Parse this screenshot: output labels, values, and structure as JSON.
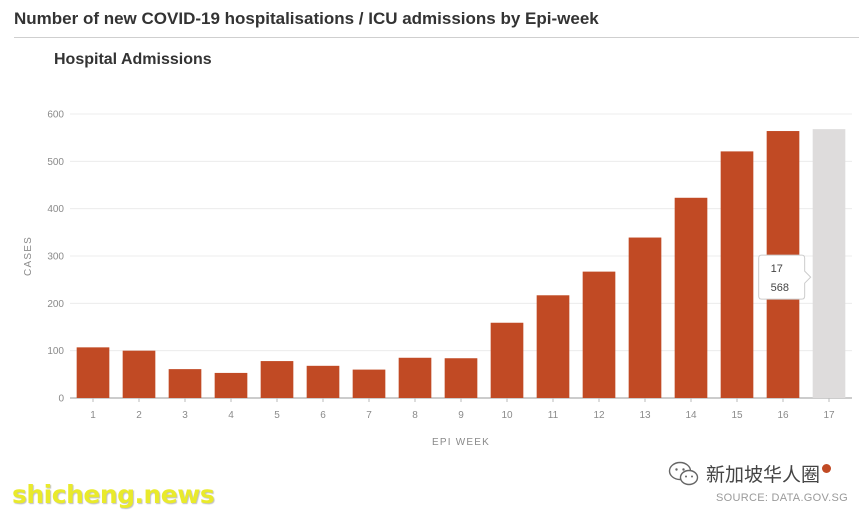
{
  "header": {
    "title": "Number of new COVID-19 hospitalisations / ICU admissions by Epi-week"
  },
  "chart_data": {
    "type": "bar",
    "title": "Hospital Admissions",
    "xlabel": "EPI WEEK",
    "ylabel": "CASES",
    "ylim": [
      0,
      600
    ],
    "yticks": [
      0,
      100,
      200,
      300,
      400,
      500,
      600
    ],
    "grid": true,
    "categories": [
      "1",
      "2",
      "3",
      "4",
      "5",
      "6",
      "7",
      "8",
      "9",
      "10",
      "11",
      "12",
      "13",
      "14",
      "15",
      "16",
      "17"
    ],
    "values": [
      107,
      100,
      61,
      53,
      78,
      68,
      60,
      85,
      84,
      159,
      217,
      267,
      339,
      423,
      521,
      564,
      568
    ],
    "bar_color": "#c14a24",
    "highlight_color": "#dedcdc",
    "highlighted_category": "17",
    "tooltip": {
      "category": "17",
      "value": "568"
    }
  },
  "watermark": {
    "text": "shicheng.news"
  },
  "brand": {
    "name": "新加坡华人圈",
    "icon": "wechat-icon"
  },
  "source": {
    "text": "SOURCE: DATA.GOV.SG"
  }
}
